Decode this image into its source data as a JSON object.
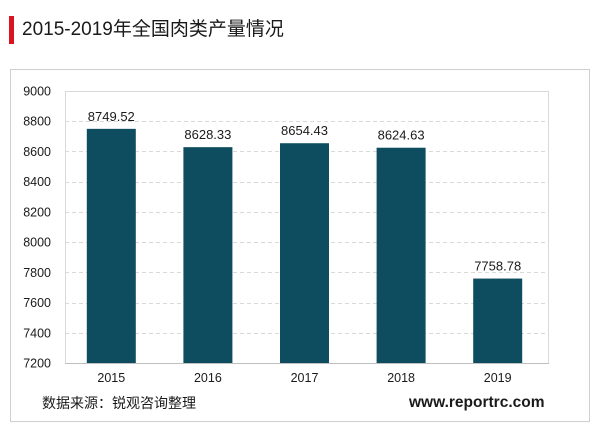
{
  "chart_data": {
    "type": "bar",
    "title": "2015-2019年全国肉类产量情况",
    "categories": [
      "2015",
      "2016",
      "2017",
      "2018",
      "2019"
    ],
    "values": [
      8749.52,
      8628.33,
      8654.43,
      8624.63,
      7758.78
    ],
    "ylim": [
      7200,
      9000
    ],
    "yticks": [
      7200,
      7400,
      7600,
      7800,
      8000,
      8200,
      8400,
      8600,
      8800,
      9000
    ],
    "grid": true
  },
  "footer": {
    "source": "数据来源：锐观咨询整理",
    "website": "www.reportrc.com"
  },
  "colors": {
    "bar": "#0e4d60",
    "title_accent": "#d9141e"
  }
}
